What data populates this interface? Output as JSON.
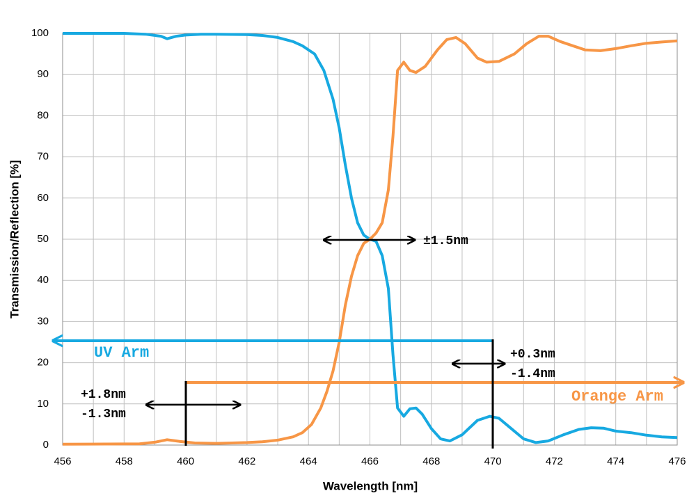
{
  "chart_data": {
    "type": "line",
    "x_label": "Wavelength [nm]",
    "y_label": "Transmission/Reflection  [%]",
    "xlim": [
      456,
      476
    ],
    "xticks": [
      456,
      458,
      460,
      462,
      464,
      466,
      468,
      470,
      472,
      474,
      476
    ],
    "ylim": [
      0,
      100
    ],
    "yticks": [
      0,
      10,
      20,
      30,
      40,
      50,
      60,
      70,
      80,
      90,
      100
    ],
    "grid": true,
    "series": [
      {
        "name": "UV Arm",
        "color": "#17a9e1",
        "x": [
          456,
          458,
          458.7,
          459.2,
          459.4,
          459.7,
          460,
          460.5,
          461,
          462,
          462.5,
          463,
          463.5,
          463.8,
          464.2,
          464.5,
          464.8,
          465,
          465.2,
          465.4,
          465.6,
          465.8,
          466,
          466.2,
          466.4,
          466.6,
          466.75,
          466.9,
          467.1,
          467.3,
          467.5,
          467.7,
          468,
          468.3,
          468.6,
          469,
          469.5,
          469.9,
          470.2,
          470.6,
          471,
          471.4,
          471.8,
          472.3,
          472.8,
          473.2,
          473.6,
          474,
          474.5,
          475,
          475.5,
          476
        ],
        "values": [
          100,
          100,
          99.8,
          99.3,
          98.7,
          99.3,
          99.6,
          99.8,
          99.8,
          99.7,
          99.5,
          99,
          98,
          97,
          95,
          91,
          84,
          77,
          68,
          60,
          54,
          51,
          50,
          49.5,
          46,
          38,
          22,
          9,
          7,
          8.8,
          9,
          7.5,
          4,
          1.5,
          1,
          2.5,
          6,
          7,
          6.5,
          4,
          1.5,
          0.6,
          1,
          2.5,
          3.8,
          4.2,
          4.1,
          3.4,
          3,
          2.4,
          2,
          1.8
        ]
      },
      {
        "name": "Orange Arm",
        "color": "#f79646",
        "x": [
          456,
          458.5,
          459,
          459.4,
          459.8,
          460.3,
          461,
          462,
          462.5,
          463,
          463.5,
          463.8,
          464.1,
          464.4,
          464.6,
          464.8,
          465,
          465.2,
          465.4,
          465.6,
          465.8,
          466,
          466.2,
          466.4,
          466.6,
          466.75,
          466.9,
          467.1,
          467.3,
          467.5,
          467.8,
          468.2,
          468.5,
          468.8,
          469.1,
          469.5,
          469.8,
          470.2,
          470.7,
          471.1,
          471.5,
          471.8,
          472.2,
          472.6,
          473,
          473.5,
          474,
          474.5,
          475,
          475.5,
          476
        ],
        "values": [
          0.2,
          0.3,
          0.7,
          1.3,
          0.9,
          0.5,
          0.4,
          0.6,
          0.8,
          1.2,
          2,
          3,
          5,
          9,
          13,
          18,
          25,
          34,
          41,
          46,
          49,
          50,
          51.5,
          54,
          62,
          75,
          91,
          93,
          91,
          90.5,
          92,
          96,
          98.5,
          99,
          97.5,
          94,
          93,
          93.2,
          95,
          97.5,
          99.3,
          99.3,
          98,
          97,
          96,
          95.8,
          96.3,
          97,
          97.6,
          97.9,
          98.2
        ]
      }
    ],
    "annotations": [
      "±1.5nm",
      "+0.3nm",
      "-1.4nm",
      "+1.8nm",
      "-1.3nm"
    ]
  }
}
